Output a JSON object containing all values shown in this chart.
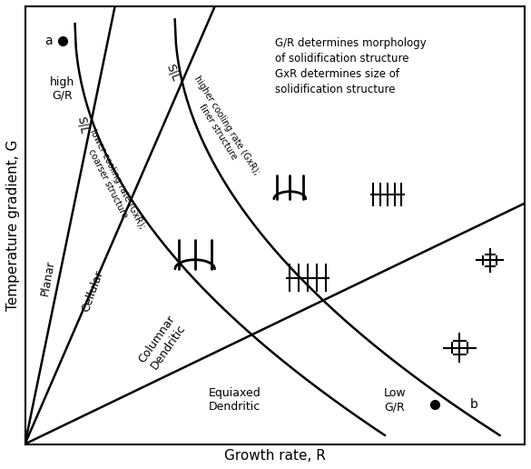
{
  "xlabel": "Growth rate, R",
  "ylabel": "Temperature gradient, G",
  "bg_color": "#ffffff",
  "text_color": "#000000",
  "annotation_right": "G/R determines morphology\nof solidification structure\nGxR determines size of\nsolidification structure",
  "label_planar": "Planar",
  "label_cellular": "Cellular",
  "label_columnar": "Columnar\nDendritic",
  "label_equiaxed": "Equiaxed\nDendritic",
  "label_a": "a",
  "label_b": "b",
  "label_high": "high\nG/R",
  "label_low": "Low\nG/R",
  "label_sl1": "S|L",
  "label_sl2": "S|L",
  "label_lower_cooling": "lower cooling rate (GxR);\ncoarser structure",
  "label_higher_cooling": "higher cooling rate (GxR);\nfiner structure"
}
